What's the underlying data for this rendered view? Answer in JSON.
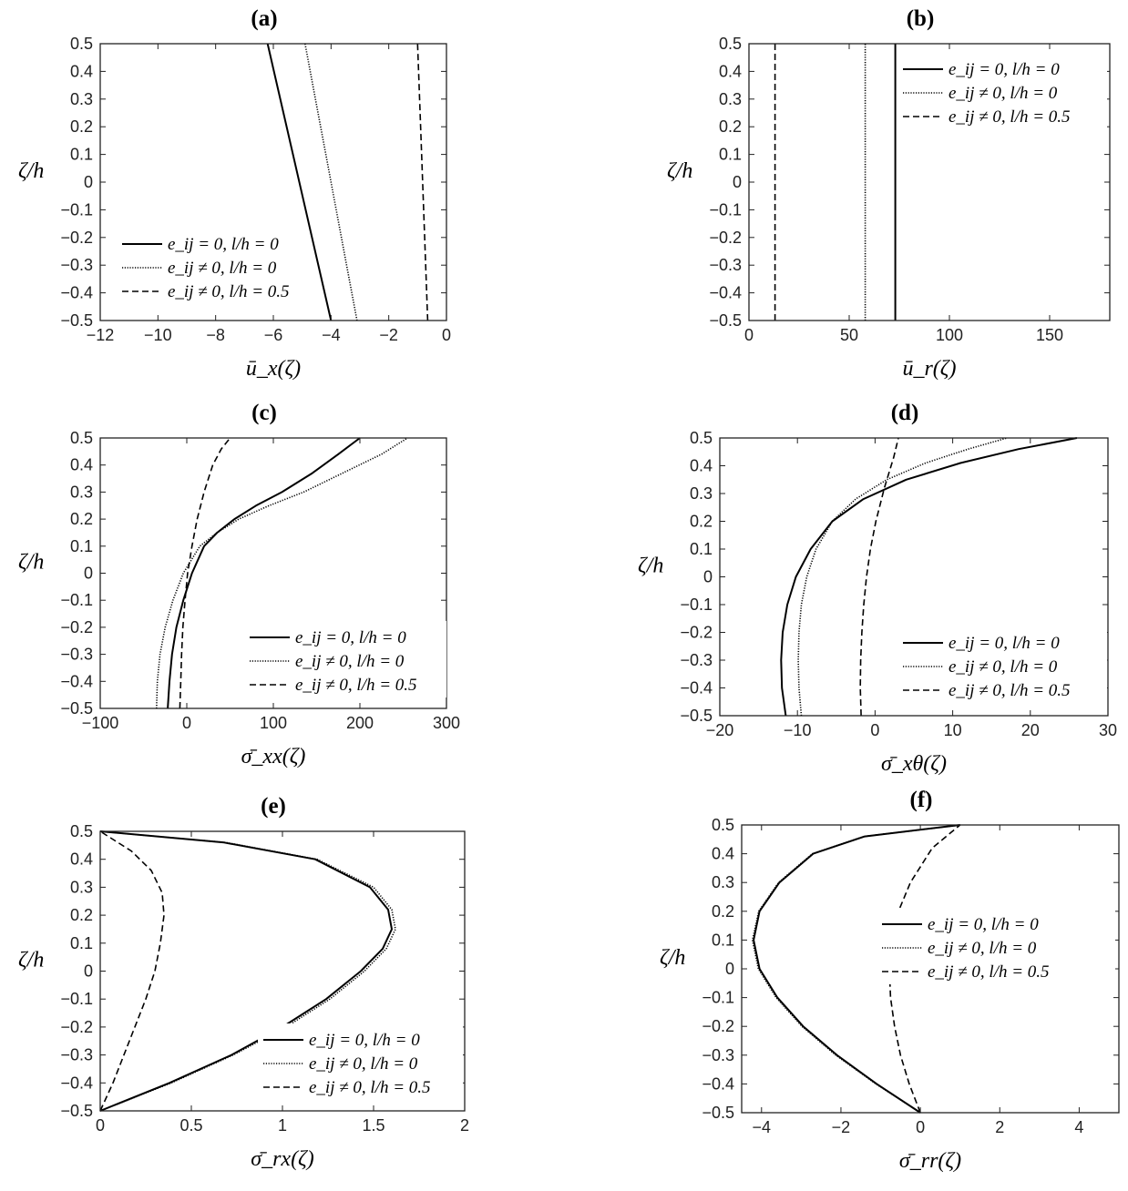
{
  "chart_data": [
    {
      "id": "a",
      "type": "line",
      "title": "(a)",
      "xlabel": "ū_x(ζ)",
      "ylabel": "ζ/h",
      "xlim": [
        -12,
        0
      ],
      "ylim": [
        -0.5,
        0.5
      ],
      "xticks": [
        "−12",
        "−10",
        "−8",
        "−6",
        "−4",
        "−2",
        "0"
      ],
      "xtick_values": [
        -12,
        -10,
        -8,
        -6,
        -4,
        -2,
        0
      ],
      "yticks": [
        "−0.5",
        "−0.4",
        "−0.3",
        "−0.2",
        "−0.1",
        "0",
        "0.1",
        "0.2",
        "0.3",
        "0.4",
        "0.5"
      ],
      "ytick_values": [
        -0.5,
        -0.4,
        -0.3,
        -0.2,
        -0.1,
        0,
        0.1,
        0.2,
        0.3,
        0.4,
        0.5
      ],
      "grid": false,
      "legend_position": "bottom-left",
      "series": [
        {
          "name": "e_ij = 0, l/h = 0",
          "style": "solid",
          "x": [
            -4.0,
            -6.2
          ],
          "y": [
            -0.5,
            0.5
          ]
        },
        {
          "name": "e_ij ≠ 0, l/h = 0",
          "style": "dotted",
          "x": [
            -3.1,
            -4.9
          ],
          "y": [
            -0.5,
            0.5
          ]
        },
        {
          "name": "e_ij ≠ 0, l/h = 0.5",
          "style": "dashed",
          "x": [
            -0.65,
            -1.0
          ],
          "y": [
            -0.5,
            0.5
          ]
        }
      ]
    },
    {
      "id": "b",
      "type": "line",
      "title": "(b)",
      "xlabel": "ū_r(ζ)",
      "ylabel": "ζ/h",
      "xlim": [
        0,
        180
      ],
      "ylim": [
        -0.5,
        0.5
      ],
      "xticks": [
        "0",
        "50",
        "100",
        "150"
      ],
      "xtick_values": [
        0,
        50,
        100,
        150
      ],
      "yticks": [
        "−0.5",
        "−0.4",
        "−0.3",
        "−0.2",
        "−0.1",
        "0",
        "0.1",
        "0.2",
        "0.3",
        "0.4",
        "0.5"
      ],
      "ytick_values": [
        -0.5,
        -0.4,
        -0.3,
        -0.2,
        -0.1,
        0,
        0.1,
        0.2,
        0.3,
        0.4,
        0.5
      ],
      "grid": false,
      "legend_position": "top-right",
      "series": [
        {
          "name": "e_ij = 0, l/h = 0",
          "style": "solid",
          "x": [
            73,
            73
          ],
          "y": [
            -0.5,
            0.5
          ]
        },
        {
          "name": "e_ij ≠ 0, l/h = 0",
          "style": "dotted",
          "x": [
            58,
            58
          ],
          "y": [
            -0.5,
            0.5
          ]
        },
        {
          "name": "e_ij ≠ 0, l/h = 0.5",
          "style": "dashed",
          "x": [
            13,
            13
          ],
          "y": [
            -0.5,
            0.5
          ]
        }
      ]
    },
    {
      "id": "c",
      "type": "line",
      "title": "(c)",
      "xlabel": "σ̄_xx(ζ)",
      "ylabel": "ζ/h",
      "xlim": [
        -100,
        300
      ],
      "ylim": [
        -0.5,
        0.5
      ],
      "xticks": [
        "−100",
        "0",
        "100",
        "200",
        "300"
      ],
      "xtick_values": [
        -100,
        0,
        100,
        200,
        300
      ],
      "yticks": [
        "−0.5",
        "−0.4",
        "−0.3",
        "−0.2",
        "−0.1",
        "0",
        "0.1",
        "0.2",
        "0.3",
        "0.4",
        "0.5"
      ],
      "ytick_values": [
        -0.5,
        -0.4,
        -0.3,
        -0.2,
        -0.1,
        0,
        0.1,
        0.2,
        0.3,
        0.4,
        0.5
      ],
      "grid": false,
      "legend_position": "bottom-right",
      "series": [
        {
          "name": "e_ij = 0, l/h = 0",
          "style": "solid",
          "x": [
            -22,
            -20,
            -17,
            -12,
            -4,
            6,
            20,
            35,
            55,
            80,
            110,
            145,
            175,
            200
          ],
          "y": [
            -0.5,
            -0.4,
            -0.3,
            -0.2,
            -0.1,
            0.0,
            0.1,
            0.15,
            0.2,
            0.25,
            0.3,
            0.37,
            0.44,
            0.5
          ]
        },
        {
          "name": "e_ij ≠ 0, l/h = 0",
          "style": "dotted",
          "x": [
            -35,
            -34,
            -31,
            -25,
            -16,
            -4,
            15,
            35,
            60,
            95,
            135,
            180,
            225,
            255
          ],
          "y": [
            -0.5,
            -0.4,
            -0.3,
            -0.2,
            -0.1,
            0.0,
            0.1,
            0.15,
            0.2,
            0.25,
            0.3,
            0.37,
            0.44,
            0.5
          ]
        },
        {
          "name": "e_ij ≠ 0, l/h = 0.5",
          "style": "dashed",
          "x": [
            -8,
            -7,
            -6,
            -4.5,
            -2,
            1,
            6,
            12,
            20,
            30,
            40,
            50
          ],
          "y": [
            -0.5,
            -0.4,
            -0.3,
            -0.2,
            -0.1,
            0.0,
            0.1,
            0.2,
            0.3,
            0.4,
            0.46,
            0.5
          ]
        }
      ]
    },
    {
      "id": "d",
      "type": "line",
      "title": "(d)",
      "xlabel": "σ̄_xθ(ζ)",
      "ylabel": "ζ/h",
      "xlim": [
        -20,
        30
      ],
      "ylim": [
        -0.5,
        0.5
      ],
      "xticks": [
        "−20",
        "−10",
        "0",
        "10",
        "20",
        "30"
      ],
      "xtick_values": [
        -20,
        -10,
        0,
        10,
        20,
        30
      ],
      "yticks": [
        "−0.5",
        "−0.4",
        "−0.3",
        "−0.2",
        "−0.1",
        "0",
        "0.1",
        "0.2",
        "0.3",
        "0.4",
        "0.5"
      ],
      "ytick_values": [
        -0.5,
        -0.4,
        -0.3,
        -0.2,
        -0.1,
        0,
        0.1,
        0.2,
        0.3,
        0.4,
        0.5
      ],
      "grid": false,
      "legend_position": "bottom-right",
      "series": [
        {
          "name": "e_ij = 0, l/h = 0",
          "style": "solid",
          "x": [
            -11.5,
            -12.0,
            -12.1,
            -11.9,
            -11.3,
            -10.2,
            -8.3,
            -5.5,
            -1.5,
            4.0,
            11.0,
            18.5,
            26.0
          ],
          "y": [
            -0.5,
            -0.4,
            -0.3,
            -0.2,
            -0.1,
            0.0,
            0.1,
            0.2,
            0.28,
            0.35,
            0.41,
            0.46,
            0.5
          ]
        },
        {
          "name": "e_ij ≠ 0, l/h = 0",
          "style": "dotted",
          "x": [
            -9.5,
            -9.8,
            -9.9,
            -9.8,
            -9.5,
            -8.8,
            -7.6,
            -5.5,
            -2.5,
            1.5,
            6.5,
            12.0,
            17.0
          ],
          "y": [
            -0.5,
            -0.4,
            -0.3,
            -0.2,
            -0.1,
            0.0,
            0.1,
            0.2,
            0.28,
            0.35,
            0.41,
            0.46,
            0.5
          ]
        },
        {
          "name": "e_ij ≠ 0, l/h = 0.5",
          "style": "dashed",
          "x": [
            -1.8,
            -1.9,
            -1.85,
            -1.7,
            -1.45,
            -1.1,
            -0.6,
            0.1,
            1.2,
            2.4,
            3.0
          ],
          "y": [
            -0.5,
            -0.4,
            -0.3,
            -0.2,
            -0.1,
            0.0,
            0.1,
            0.2,
            0.32,
            0.43,
            0.5
          ]
        }
      ]
    },
    {
      "id": "e",
      "type": "line",
      "title": "(e)",
      "xlabel": "σ̄_rx(ζ)",
      "ylabel": "ζ/h",
      "xlim": [
        0,
        2
      ],
      "ylim": [
        -0.5,
        0.5
      ],
      "xticks": [
        "0",
        "0.5",
        "1",
        "1.5",
        "2"
      ],
      "xtick_values": [
        0,
        0.5,
        1,
        1.5,
        2
      ],
      "yticks": [
        "−0.5",
        "−0.4",
        "−0.3",
        "−0.2",
        "−0.1",
        "0",
        "0.1",
        "0.2",
        "0.3",
        "0.4",
        "0.5"
      ],
      "ytick_values": [
        -0.5,
        -0.4,
        -0.3,
        -0.2,
        -0.1,
        0,
        0.1,
        0.2,
        0.3,
        0.4,
        0.5
      ],
      "grid": false,
      "legend_position": "bottom-right",
      "series": [
        {
          "name": "e_ij = 0, l/h = 0",
          "style": "solid",
          "x": [
            0.0,
            0.38,
            0.72,
            1.0,
            1.24,
            1.43,
            1.55,
            1.6,
            1.58,
            1.48,
            1.18,
            0.68,
            0.0
          ],
          "y": [
            -0.5,
            -0.4,
            -0.3,
            -0.2,
            -0.1,
            0.0,
            0.08,
            0.15,
            0.22,
            0.3,
            0.4,
            0.46,
            0.5
          ]
        },
        {
          "name": "e_ij ≠ 0, l/h = 0",
          "style": "dotted",
          "x": [
            0.0,
            0.39,
            0.73,
            1.02,
            1.26,
            1.45,
            1.57,
            1.62,
            1.6,
            1.5,
            1.19,
            0.69,
            0.0
          ],
          "y": [
            -0.5,
            -0.4,
            -0.3,
            -0.2,
            -0.1,
            0.0,
            0.08,
            0.15,
            0.22,
            0.3,
            0.4,
            0.46,
            0.5
          ]
        },
        {
          "name": "e_ij ≠ 0, l/h = 0.5",
          "style": "dashed",
          "x": [
            0.0,
            0.07,
            0.13,
            0.19,
            0.25,
            0.3,
            0.33,
            0.35,
            0.34,
            0.28,
            0.17,
            0.0
          ],
          "y": [
            -0.5,
            -0.4,
            -0.3,
            -0.2,
            -0.1,
            0.0,
            0.1,
            0.2,
            0.28,
            0.36,
            0.43,
            0.5
          ]
        }
      ]
    },
    {
      "id": "f",
      "type": "line",
      "title": "(f)",
      "xlabel": "σ̄_rr(ζ)",
      "ylabel": "ζ/h",
      "xlim": [
        -4.5,
        5
      ],
      "ylim": [
        -0.5,
        0.5
      ],
      "xticks": [
        "−4",
        "−2",
        "0",
        "2",
        "4"
      ],
      "xtick_values": [
        -4,
        -2,
        0,
        2,
        4
      ],
      "yticks": [
        "−0.5",
        "−0.4",
        "−0.3",
        "−0.2",
        "−0.1",
        "0",
        "0.1",
        "0.2",
        "0.3",
        "0.4",
        "0.5"
      ],
      "ytick_values": [
        -0.5,
        -0.4,
        -0.3,
        -0.2,
        -0.1,
        0,
        0.1,
        0.2,
        0.3,
        0.4,
        0.5
      ],
      "grid": false,
      "legend_position": "right",
      "series": [
        {
          "name": "e_ij = 0, l/h = 0",
          "style": "solid",
          "x": [
            0.0,
            -1.1,
            -2.1,
            -2.95,
            -3.6,
            -4.05,
            -4.2,
            -4.05,
            -3.55,
            -2.7,
            -1.4,
            1.0
          ],
          "y": [
            -0.5,
            -0.4,
            -0.3,
            -0.2,
            -0.1,
            0.0,
            0.1,
            0.2,
            0.3,
            0.4,
            0.46,
            0.5
          ]
        },
        {
          "name": "e_ij ≠ 0, l/h = 0",
          "style": "dotted",
          "x": [
            0.0,
            -1.12,
            -2.13,
            -2.98,
            -3.63,
            -4.08,
            -4.23,
            -4.07,
            -3.57,
            -2.72,
            -1.42,
            1.0
          ],
          "y": [
            -0.5,
            -0.4,
            -0.3,
            -0.2,
            -0.1,
            0.0,
            0.1,
            0.2,
            0.3,
            0.4,
            0.46,
            0.5
          ]
        },
        {
          "name": "e_ij ≠ 0, l/h = 0.5",
          "style": "dashed",
          "x": [
            0.0,
            -0.28,
            -0.5,
            -0.65,
            -0.75,
            -0.78,
            -0.72,
            -0.55,
            -0.25,
            0.3,
            1.0
          ],
          "y": [
            -0.5,
            -0.4,
            -0.3,
            -0.2,
            -0.1,
            0.0,
            0.1,
            0.2,
            0.3,
            0.42,
            0.5
          ]
        }
      ]
    }
  ]
}
